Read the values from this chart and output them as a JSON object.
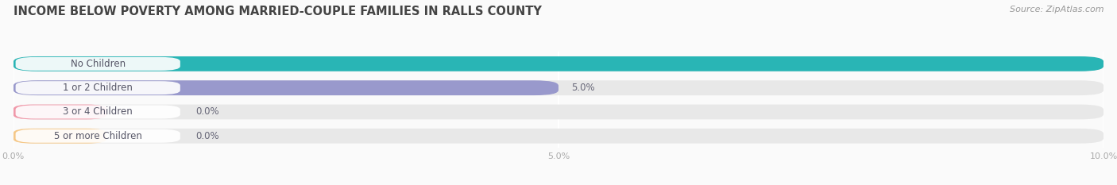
{
  "title": "INCOME BELOW POVERTY AMONG MARRIED-COUPLE FAMILIES IN RALLS COUNTY",
  "source": "Source: ZipAtlas.com",
  "categories": [
    "No Children",
    "1 or 2 Children",
    "3 or 4 Children",
    "5 or more Children"
  ],
  "values": [
    10.0,
    5.0,
    0.0,
    0.0
  ],
  "bar_colors": [
    "#29b5b5",
    "#9999cc",
    "#f099aa",
    "#f5c888"
  ],
  "bar_bg_color": "#e8e8e8",
  "fig_bg_color": "#ffffff",
  "row_bg_color": "#f0f0f0",
  "xlim": [
    0,
    10.0
  ],
  "xticks": [
    0.0,
    5.0,
    10.0
  ],
  "xtick_labels": [
    "0.0%",
    "5.0%",
    "10.0%"
  ],
  "label_text_color": "#555566",
  "value_text_color": "#666677",
  "title_color": "#444444",
  "source_color": "#999999",
  "bar_height": 0.62,
  "fig_bg": "#fafafa",
  "title_fontsize": 10.5,
  "source_fontsize": 8,
  "label_fontsize": 8.5,
  "value_fontsize": 8.5,
  "tick_fontsize": 8
}
